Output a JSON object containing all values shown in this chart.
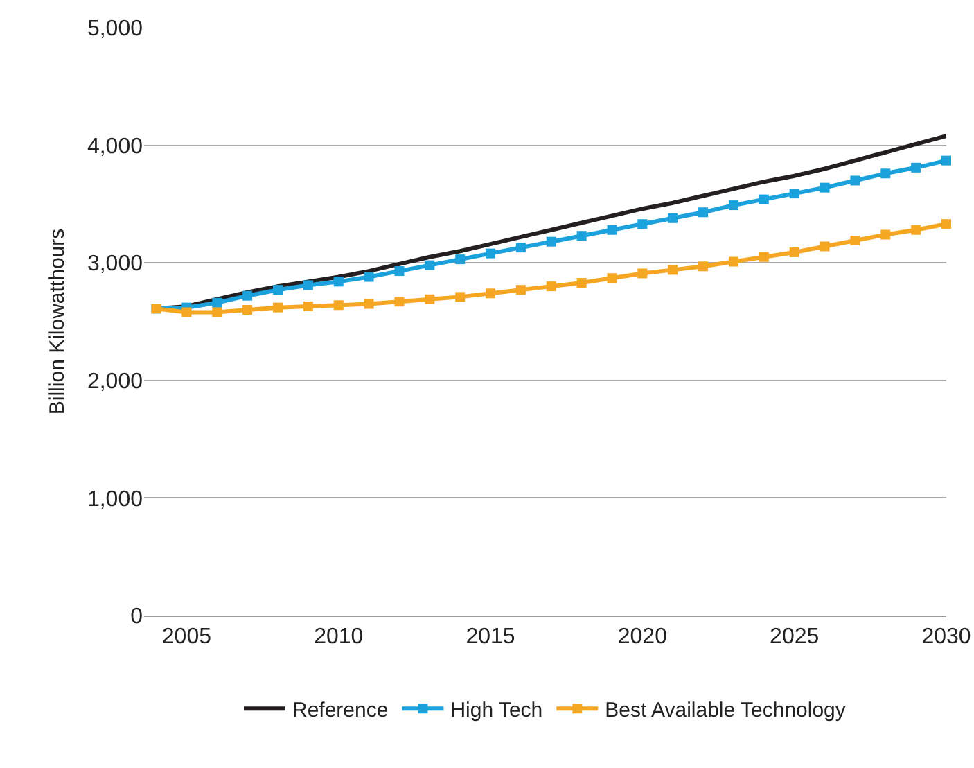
{
  "chart_data": {
    "type": "line",
    "ylabel": "Billion Kilowatthours",
    "x": [
      2004,
      2005,
      2006,
      2007,
      2008,
      2009,
      2010,
      2011,
      2012,
      2013,
      2014,
      2015,
      2016,
      2017,
      2018,
      2019,
      2020,
      2021,
      2022,
      2023,
      2024,
      2025,
      2026,
      2027,
      2028,
      2029,
      2030
    ],
    "xlim": [
      2003.6,
      2030
    ],
    "xticks": [
      2005,
      2010,
      2015,
      2020,
      2025,
      2030
    ],
    "ylim": [
      0,
      5000
    ],
    "yticks": [
      {
        "value": 0,
        "label": "0"
      },
      {
        "value": 1000,
        "label": "1,000"
      },
      {
        "value": 2000,
        "label": "2,000"
      },
      {
        "value": 3000,
        "label": "3,000"
      },
      {
        "value": 4000,
        "label": "4,000"
      },
      {
        "value": 5000,
        "label": "5,000"
      }
    ],
    "grid": "y",
    "legend": "bottom",
    "line_style": "solid",
    "series": [
      {
        "name": "Reference",
        "color": "#231f20",
        "marker": "none",
        "values": [
          2610,
          2630,
          2690,
          2750,
          2800,
          2840,
          2880,
          2930,
          2990,
          3050,
          3100,
          3160,
          3220,
          3280,
          3340,
          3400,
          3460,
          3510,
          3570,
          3630,
          3690,
          3740,
          3800,
          3870,
          3940,
          4010,
          4080
        ]
      },
      {
        "name": "High Tech",
        "color": "#1ba1dc",
        "marker": "square",
        "values": [
          2610,
          2620,
          2660,
          2720,
          2770,
          2810,
          2840,
          2880,
          2930,
          2980,
          3030,
          3080,
          3130,
          3180,
          3230,
          3280,
          3330,
          3380,
          3430,
          3490,
          3540,
          3590,
          3640,
          3700,
          3760,
          3810,
          3870
        ]
      },
      {
        "name": "Best Available Technology",
        "color": "#f5a623",
        "marker": "square",
        "values": [
          2610,
          2580,
          2580,
          2600,
          2620,
          2630,
          2640,
          2650,
          2670,
          2690,
          2710,
          2740,
          2770,
          2800,
          2830,
          2870,
          2910,
          2940,
          2970,
          3010,
          3050,
          3090,
          3140,
          3190,
          3240,
          3280,
          3330
        ]
      }
    ]
  }
}
